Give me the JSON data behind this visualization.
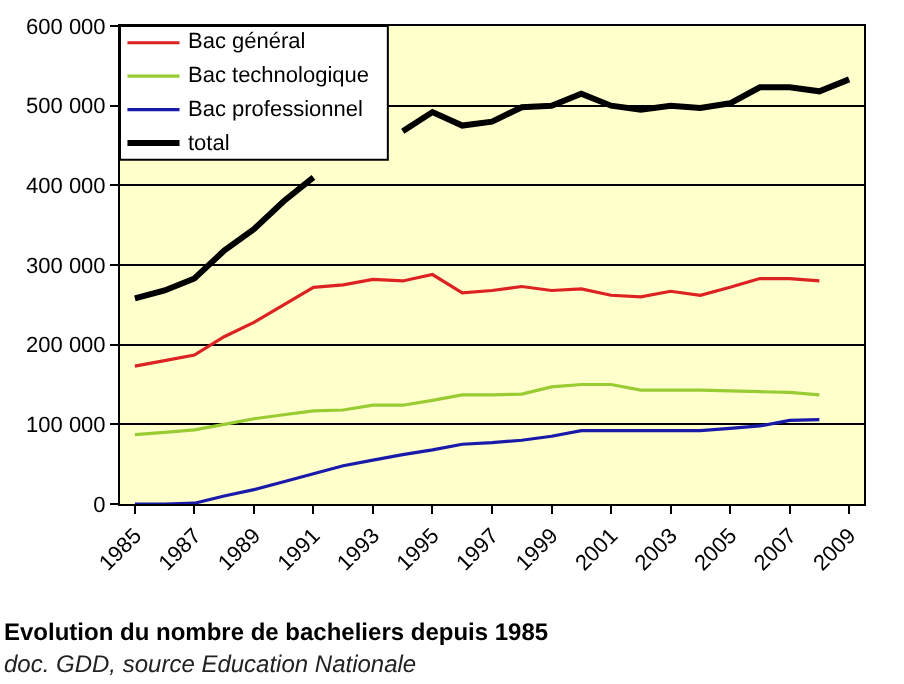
{
  "chart_data": {
    "type": "line",
    "x": [
      1985,
      1986,
      1987,
      1988,
      1989,
      1990,
      1991,
      1992,
      1993,
      1994,
      1995,
      1996,
      1997,
      1998,
      1999,
      2000,
      2001,
      2002,
      2003,
      2004,
      2005,
      2006,
      2007,
      2008,
      2009
    ],
    "series": [
      {
        "name": "Bac général",
        "color": "#dd2222",
        "values": [
          173000,
          180000,
          187000,
          210000,
          228000,
          250000,
          272000,
          275000,
          282000,
          280000,
          288000,
          265000,
          268000,
          273000,
          268000,
          270000,
          262000,
          260000,
          267000,
          262000,
          272000,
          283000,
          283000,
          280000,
          null
        ]
      },
      {
        "name": "Bac technologique",
        "color": "#99cc33",
        "values": [
          87000,
          90000,
          93000,
          100000,
          107000,
          112000,
          117000,
          118000,
          124000,
          124000,
          130000,
          137000,
          137000,
          138000,
          147000,
          150000,
          150000,
          143000,
          143000,
          143000,
          142000,
          141000,
          140000,
          137000,
          null
        ]
      },
      {
        "name": "Bac professionnel",
        "color": "#1a1aaa",
        "values": [
          0,
          0,
          1000,
          10000,
          18000,
          28000,
          38000,
          48000,
          55000,
          62000,
          68000,
          75000,
          77000,
          80000,
          85000,
          92000,
          92000,
          92000,
          92000,
          92000,
          95000,
          98000,
          105000,
          106000,
          null
        ]
      },
      {
        "name": "total",
        "color": "#000000",
        "values": [
          258000,
          268000,
          283000,
          318000,
          345000,
          380000,
          410000,
          null,
          null,
          468000,
          492000,
          475000,
          480000,
          498000,
          500000,
          515000,
          500000,
          495000,
          500000,
          497000,
          503000,
          523000,
          523000,
          518000,
          533000
        ]
      }
    ],
    "xlim": [
      1984.5,
      2009.5
    ],
    "xticks": [
      1985,
      1987,
      1989,
      1991,
      1993,
      1995,
      1997,
      1999,
      2001,
      2003,
      2005,
      2007,
      2009
    ],
    "ylim": [
      0,
      600000
    ],
    "yticks": [
      {
        "value": 0,
        "label": "0"
      },
      {
        "value": 100000,
        "label": "100 000"
      },
      {
        "value": 200000,
        "label": "200 000"
      },
      {
        "value": 300000,
        "label": "300 000"
      },
      {
        "value": 400000,
        "label": "400 000"
      },
      {
        "value": 500000,
        "label": "500 000"
      },
      {
        "value": 600000,
        "label": "600 000"
      }
    ],
    "grid": "y",
    "legend": "top left",
    "marker": "none",
    "line_style": "solid",
    "annotations": [
      "Evolution du nombre de bacheliers depuis 1985",
      "doc. GDD, source Education Nationale"
    ]
  }
}
